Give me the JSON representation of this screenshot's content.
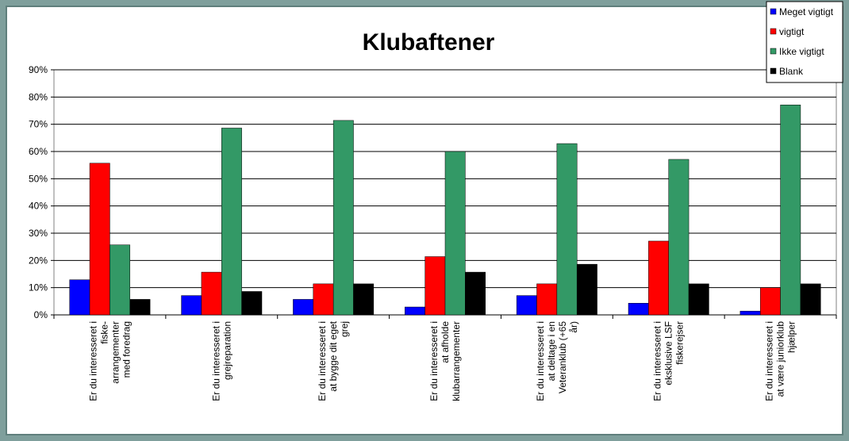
{
  "chart_data": {
    "type": "bar",
    "title": "Klubaftener",
    "categories": [
      "Er du interesseret i\nfiske-\narrangementer\nmed foredrag",
      "Er du interesseret i\ngrejreparation",
      "Er du interesseret i\nat bygge dit eget\ngrej",
      "Er du interesseret i\nat afholde\nklubarrangementer",
      "Er du interesseret i\nat deltage i en\nVeteranklub (+65\når)",
      "Er du interesseret i\neksklusive LSF\nfiskerejser",
      "Er du interesseret i\nat være juniorklub\nhjælper"
    ],
    "series": [
      {
        "name": "Meget vigtigt",
        "color": "#0000ff",
        "values": [
          12.9,
          7.1,
          5.7,
          2.9,
          7.1,
          4.3,
          1.4
        ]
      },
      {
        "name": "vigtigt",
        "color": "#ff0000",
        "values": [
          55.7,
          15.7,
          11.4,
          21.4,
          11.4,
          27.1,
          10.0
        ]
      },
      {
        "name": "Ikke vigtigt",
        "color": "#339966",
        "values": [
          25.7,
          68.6,
          71.4,
          60.0,
          62.9,
          57.1,
          77.1
        ]
      },
      {
        "name": "Blank",
        "color": "#000000",
        "values": [
          5.7,
          8.6,
          11.4,
          15.7,
          18.6,
          11.4,
          11.4
        ]
      }
    ],
    "ylim": [
      0,
      90
    ],
    "yticks": [
      {
        "value": 0,
        "label": "0%"
      },
      {
        "value": 10,
        "label": "10%"
      },
      {
        "value": 20,
        "label": "20%"
      },
      {
        "value": 30,
        "label": "30%"
      },
      {
        "value": 40,
        "label": "40%"
      },
      {
        "value": 50,
        "label": "50%"
      },
      {
        "value": 60,
        "label": "60%"
      },
      {
        "value": 70,
        "label": "70%"
      },
      {
        "value": 80,
        "label": "80%"
      },
      {
        "value": 90,
        "label": "90%"
      }
    ],
    "grid": true,
    "legend": "top-right"
  }
}
